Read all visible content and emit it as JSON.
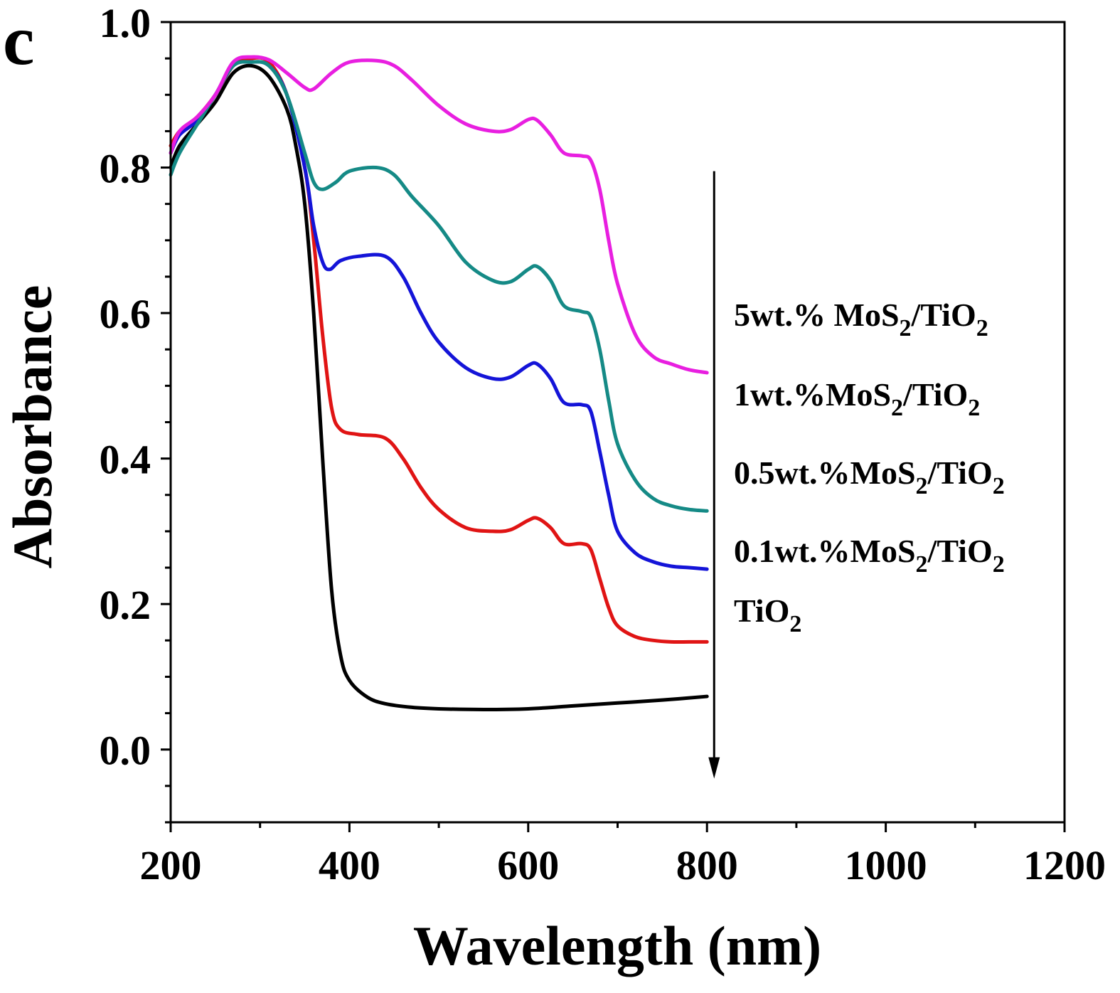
{
  "panel_label": "c",
  "chart_data": {
    "type": "line",
    "title": "",
    "xlabel": "Wavelength (nm)",
    "ylabel": "Absorbance",
    "xlim": [
      200,
      1200
    ],
    "ylim": [
      -0.1,
      1.0
    ],
    "x_ticks": [
      "200",
      "400",
      "600",
      "800",
      "1000",
      "1200"
    ],
    "y_ticks": [
      "0.0",
      "0.2",
      "0.4",
      "0.6",
      "0.8",
      "1.0"
    ],
    "arrow": {
      "x": 808,
      "from": 0.795,
      "to": -0.04,
      "meaning": "decreasing MoS2 content"
    },
    "series": [
      {
        "name": "5wt.% MoS2/TiO2",
        "label_main": "5wt.% MoS",
        "label_sub1": "2",
        "label_mid": "/TiO",
        "label_sub2": "2",
        "color": "#e81fe0",
        "points": [
          [
            200,
            0.82
          ],
          [
            210,
            0.85
          ],
          [
            230,
            0.87
          ],
          [
            250,
            0.9
          ],
          [
            270,
            0.945
          ],
          [
            290,
            0.952
          ],
          [
            310,
            0.948
          ],
          [
            330,
            0.93
          ],
          [
            350,
            0.91
          ],
          [
            360,
            0.908
          ],
          [
            380,
            0.93
          ],
          [
            400,
            0.945
          ],
          [
            430,
            0.947
          ],
          [
            450,
            0.94
          ],
          [
            470,
            0.92
          ],
          [
            500,
            0.885
          ],
          [
            530,
            0.86
          ],
          [
            560,
            0.85
          ],
          [
            580,
            0.852
          ],
          [
            600,
            0.866
          ],
          [
            610,
            0.865
          ],
          [
            625,
            0.845
          ],
          [
            640,
            0.82
          ],
          [
            660,
            0.816
          ],
          [
            670,
            0.81
          ],
          [
            680,
            0.77
          ],
          [
            690,
            0.7
          ],
          [
            700,
            0.64
          ],
          [
            720,
            0.57
          ],
          [
            740,
            0.54
          ],
          [
            760,
            0.53
          ],
          [
            780,
            0.522
          ],
          [
            800,
            0.518
          ]
        ]
      },
      {
        "name": "1wt.%MoS2/TiO2",
        "label_main": "1wt.%MoS",
        "label_sub1": "2",
        "label_mid": "/TiO",
        "label_sub2": "2",
        "color": "#158a86",
        "points": [
          [
            200,
            0.79
          ],
          [
            210,
            0.82
          ],
          [
            230,
            0.86
          ],
          [
            250,
            0.9
          ],
          [
            270,
            0.94
          ],
          [
            290,
            0.945
          ],
          [
            310,
            0.94
          ],
          [
            330,
            0.9
          ],
          [
            350,
            0.82
          ],
          [
            360,
            0.78
          ],
          [
            370,
            0.77
          ],
          [
            385,
            0.78
          ],
          [
            400,
            0.795
          ],
          [
            430,
            0.8
          ],
          [
            450,
            0.79
          ],
          [
            470,
            0.76
          ],
          [
            500,
            0.72
          ],
          [
            530,
            0.67
          ],
          [
            560,
            0.645
          ],
          [
            580,
            0.643
          ],
          [
            600,
            0.66
          ],
          [
            610,
            0.664
          ],
          [
            625,
            0.645
          ],
          [
            640,
            0.61
          ],
          [
            660,
            0.602
          ],
          [
            670,
            0.595
          ],
          [
            680,
            0.55
          ],
          [
            690,
            0.48
          ],
          [
            700,
            0.42
          ],
          [
            720,
            0.37
          ],
          [
            740,
            0.345
          ],
          [
            760,
            0.335
          ],
          [
            780,
            0.33
          ],
          [
            800,
            0.328
          ]
        ]
      },
      {
        "name": "0.5wt.%MoS2/TiO2",
        "label_main": "0.5wt.%MoS",
        "label_sub1": "2",
        "label_mid": "/TiO",
        "label_sub2": "2",
        "color": "#1414d8",
        "points": [
          [
            200,
            0.82
          ],
          [
            210,
            0.845
          ],
          [
            230,
            0.865
          ],
          [
            250,
            0.9
          ],
          [
            270,
            0.94
          ],
          [
            290,
            0.945
          ],
          [
            310,
            0.94
          ],
          [
            330,
            0.9
          ],
          [
            350,
            0.8
          ],
          [
            360,
            0.72
          ],
          [
            370,
            0.67
          ],
          [
            378,
            0.66
          ],
          [
            390,
            0.672
          ],
          [
            410,
            0.678
          ],
          [
            440,
            0.678
          ],
          [
            460,
            0.65
          ],
          [
            480,
            0.6
          ],
          [
            500,
            0.56
          ],
          [
            530,
            0.525
          ],
          [
            560,
            0.51
          ],
          [
            580,
            0.512
          ],
          [
            600,
            0.528
          ],
          [
            610,
            0.53
          ],
          [
            625,
            0.51
          ],
          [
            640,
            0.477
          ],
          [
            660,
            0.474
          ],
          [
            670,
            0.465
          ],
          [
            680,
            0.41
          ],
          [
            690,
            0.35
          ],
          [
            700,
            0.3
          ],
          [
            720,
            0.27
          ],
          [
            740,
            0.258
          ],
          [
            760,
            0.252
          ],
          [
            780,
            0.25
          ],
          [
            800,
            0.248
          ]
        ]
      },
      {
        "name": "0.1wt.%MoS2/TiO2",
        "label_main": "0.1wt.%MoS",
        "label_sub1": "2",
        "label_mid": "/TiO",
        "label_sub2": "2",
        "color": "#e01414",
        "points": [
          [
            200,
            0.83
          ],
          [
            210,
            0.85
          ],
          [
            230,
            0.87
          ],
          [
            250,
            0.9
          ],
          [
            270,
            0.94
          ],
          [
            290,
            0.95
          ],
          [
            310,
            0.945
          ],
          [
            330,
            0.9
          ],
          [
            350,
            0.8
          ],
          [
            360,
            0.7
          ],
          [
            370,
            0.57
          ],
          [
            380,
            0.47
          ],
          [
            390,
            0.44
          ],
          [
            410,
            0.433
          ],
          [
            440,
            0.428
          ],
          [
            460,
            0.4
          ],
          [
            480,
            0.36
          ],
          [
            500,
            0.33
          ],
          [
            530,
            0.305
          ],
          [
            560,
            0.3
          ],
          [
            580,
            0.302
          ],
          [
            600,
            0.315
          ],
          [
            610,
            0.318
          ],
          [
            625,
            0.305
          ],
          [
            640,
            0.283
          ],
          [
            660,
            0.283
          ],
          [
            670,
            0.275
          ],
          [
            680,
            0.235
          ],
          [
            690,
            0.195
          ],
          [
            700,
            0.17
          ],
          [
            720,
            0.155
          ],
          [
            740,
            0.15
          ],
          [
            760,
            0.148
          ],
          [
            780,
            0.148
          ],
          [
            800,
            0.148
          ]
        ]
      },
      {
        "name": "TiO2",
        "label_main": "TiO",
        "label_sub1": "2",
        "label_mid": "",
        "label_sub2": "",
        "color": "#000000",
        "points": [
          [
            200,
            0.8
          ],
          [
            210,
            0.83
          ],
          [
            230,
            0.86
          ],
          [
            250,
            0.89
          ],
          [
            270,
            0.93
          ],
          [
            290,
            0.94
          ],
          [
            310,
            0.925
          ],
          [
            330,
            0.88
          ],
          [
            340,
            0.83
          ],
          [
            350,
            0.75
          ],
          [
            360,
            0.6
          ],
          [
            370,
            0.4
          ],
          [
            380,
            0.22
          ],
          [
            390,
            0.13
          ],
          [
            400,
            0.095
          ],
          [
            420,
            0.072
          ],
          [
            440,
            0.063
          ],
          [
            470,
            0.058
          ],
          [
            500,
            0.056
          ],
          [
            550,
            0.055
          ],
          [
            600,
            0.056
          ],
          [
            650,
            0.06
          ],
          [
            700,
            0.064
          ],
          [
            750,
            0.068
          ],
          [
            800,
            0.073
          ]
        ]
      }
    ]
  }
}
